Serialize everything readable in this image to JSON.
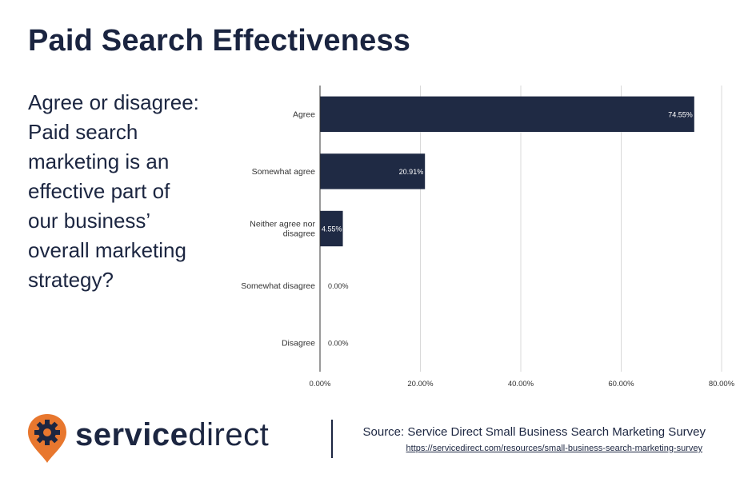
{
  "title": "Paid Search Effectiveness",
  "question": "Agree or disagree: Paid search marketing is an effective part of our business’ overall marketing strategy?",
  "brand": {
    "bold": "service",
    "light": "direct"
  },
  "source": {
    "text": "Source: Service Direct Small Business Search Marketing Survey",
    "url": "https://servicedirect.com/resources/small-business-search-marketing-survey"
  },
  "colors": {
    "bar": "#1f2a44",
    "logo_orange": "#e8772e",
    "grid": "#d9d9d9"
  },
  "chart_data": {
    "type": "bar",
    "orientation": "horizontal",
    "categories": [
      [
        "Agree"
      ],
      [
        "Somewhat agree"
      ],
      [
        "Neither agree nor",
        "disagree"
      ],
      [
        "Somewhat disagree"
      ],
      [
        "Disagree"
      ]
    ],
    "values": [
      74.55,
      20.91,
      4.55,
      0.0,
      0.0
    ],
    "value_labels": [
      "74.55%",
      "20.91%",
      "4.55%",
      "0.00%",
      "0.00%"
    ],
    "xlim": [
      0,
      80
    ],
    "ticks": [
      0,
      20,
      40,
      60,
      80
    ],
    "tick_labels": [
      "0.00%",
      "20.00%",
      "40.00%",
      "60.00%",
      "80.00%"
    ],
    "grid": true,
    "title": "",
    "xlabel": "",
    "ylabel": ""
  }
}
